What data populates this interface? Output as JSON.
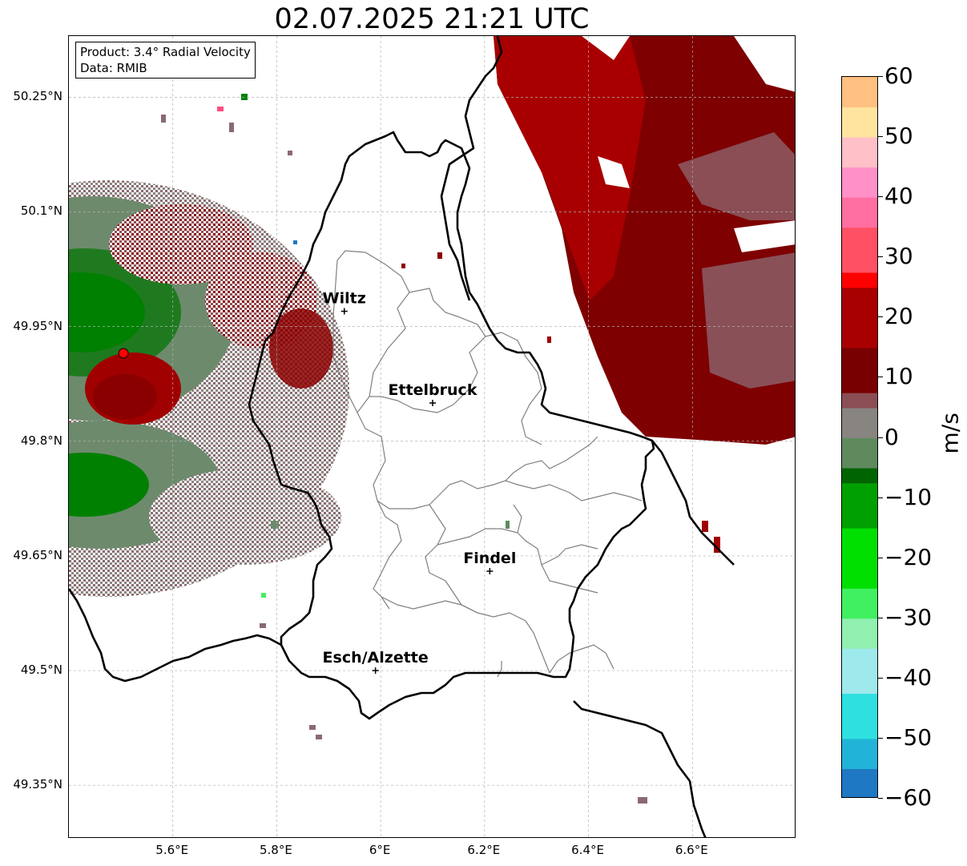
{
  "title": "02.07.2025 21:21 UTC",
  "info": {
    "product": "Product: 3.4° Radial Velocity",
    "data": "Data: RMIB"
  },
  "lat_ticks": [
    "50.25°N",
    "50.1°N",
    "49.95°N",
    "49.8°N",
    "49.65°N",
    "49.5°N",
    "49.35°N"
  ],
  "lon_ticks": [
    "5.6°E",
    "5.8°E",
    "6°E",
    "6.2°E",
    "6.4°E",
    "6.6°E"
  ],
  "cities": [
    {
      "name": "Wiltz",
      "lon": 5.93,
      "lat": 49.97
    },
    {
      "name": "Ettelbruck",
      "lon": 6.1,
      "lat": 49.85
    },
    {
      "name": "Findel",
      "lon": 6.21,
      "lat": 49.63
    },
    {
      "name": "Esch/Alzette",
      "lon": 5.99,
      "lat": 49.5
    }
  ],
  "radar_site": {
    "lon": 5.505,
    "lat": 49.915,
    "color": "#ff0000"
  },
  "colorbar": {
    "unit": "m/s",
    "ticks": [
      "60",
      "50",
      "40",
      "30",
      "20",
      "10",
      "0",
      "−10",
      "−20",
      "−30",
      "−40",
      "−50",
      "−60"
    ],
    "range": [
      -60,
      60
    ],
    "stops": [
      {
        "v": -60,
        "c": "#1f78c4"
      },
      {
        "v": -55,
        "c": "#22b4d8"
      },
      {
        "v": -50,
        "c": "#2fe0e0"
      },
      {
        "v": -42,
        "c": "#9ee9ec"
      },
      {
        "v": -36,
        "c": "#bff0f0"
      },
      {
        "v": -34,
        "c": "#90f0b0"
      },
      {
        "v": -30,
        "c": "#40f060"
      },
      {
        "v": -25,
        "c": "#00e000"
      },
      {
        "v": -15,
        "c": "#00a000"
      },
      {
        "v": -8,
        "c": "#006400"
      },
      {
        "v": -6,
        "c": "#5e8a5e"
      },
      {
        "v": 0,
        "c": "#888480"
      },
      {
        "v": 6,
        "c": "#8a4e54"
      },
      {
        "v": 8,
        "c": "#780000"
      },
      {
        "v": 15,
        "c": "#a80000"
      },
      {
        "v": 25,
        "c": "#ff0000"
      },
      {
        "v": 27,
        "c": "#ff5064"
      },
      {
        "v": 35,
        "c": "#ff6ea0"
      },
      {
        "v": 40,
        "c": "#ff90c8"
      },
      {
        "v": 45,
        "c": "#ffc0c8"
      },
      {
        "v": 50,
        "c": "#ffe4a0"
      },
      {
        "v": 55,
        "c": "#ffc080"
      },
      {
        "v": 60,
        "c": "#ffa050"
      }
    ]
  },
  "colors": {
    "border": "#000000",
    "admin": "#808080",
    "grid": "#b0b0b0",
    "echo_red_dark": "#7a0000",
    "echo_red": "#a50000",
    "echo_gray": "#8a5058",
    "echo_green": "#008000",
    "echo_greengray": "#5e8a5e"
  }
}
